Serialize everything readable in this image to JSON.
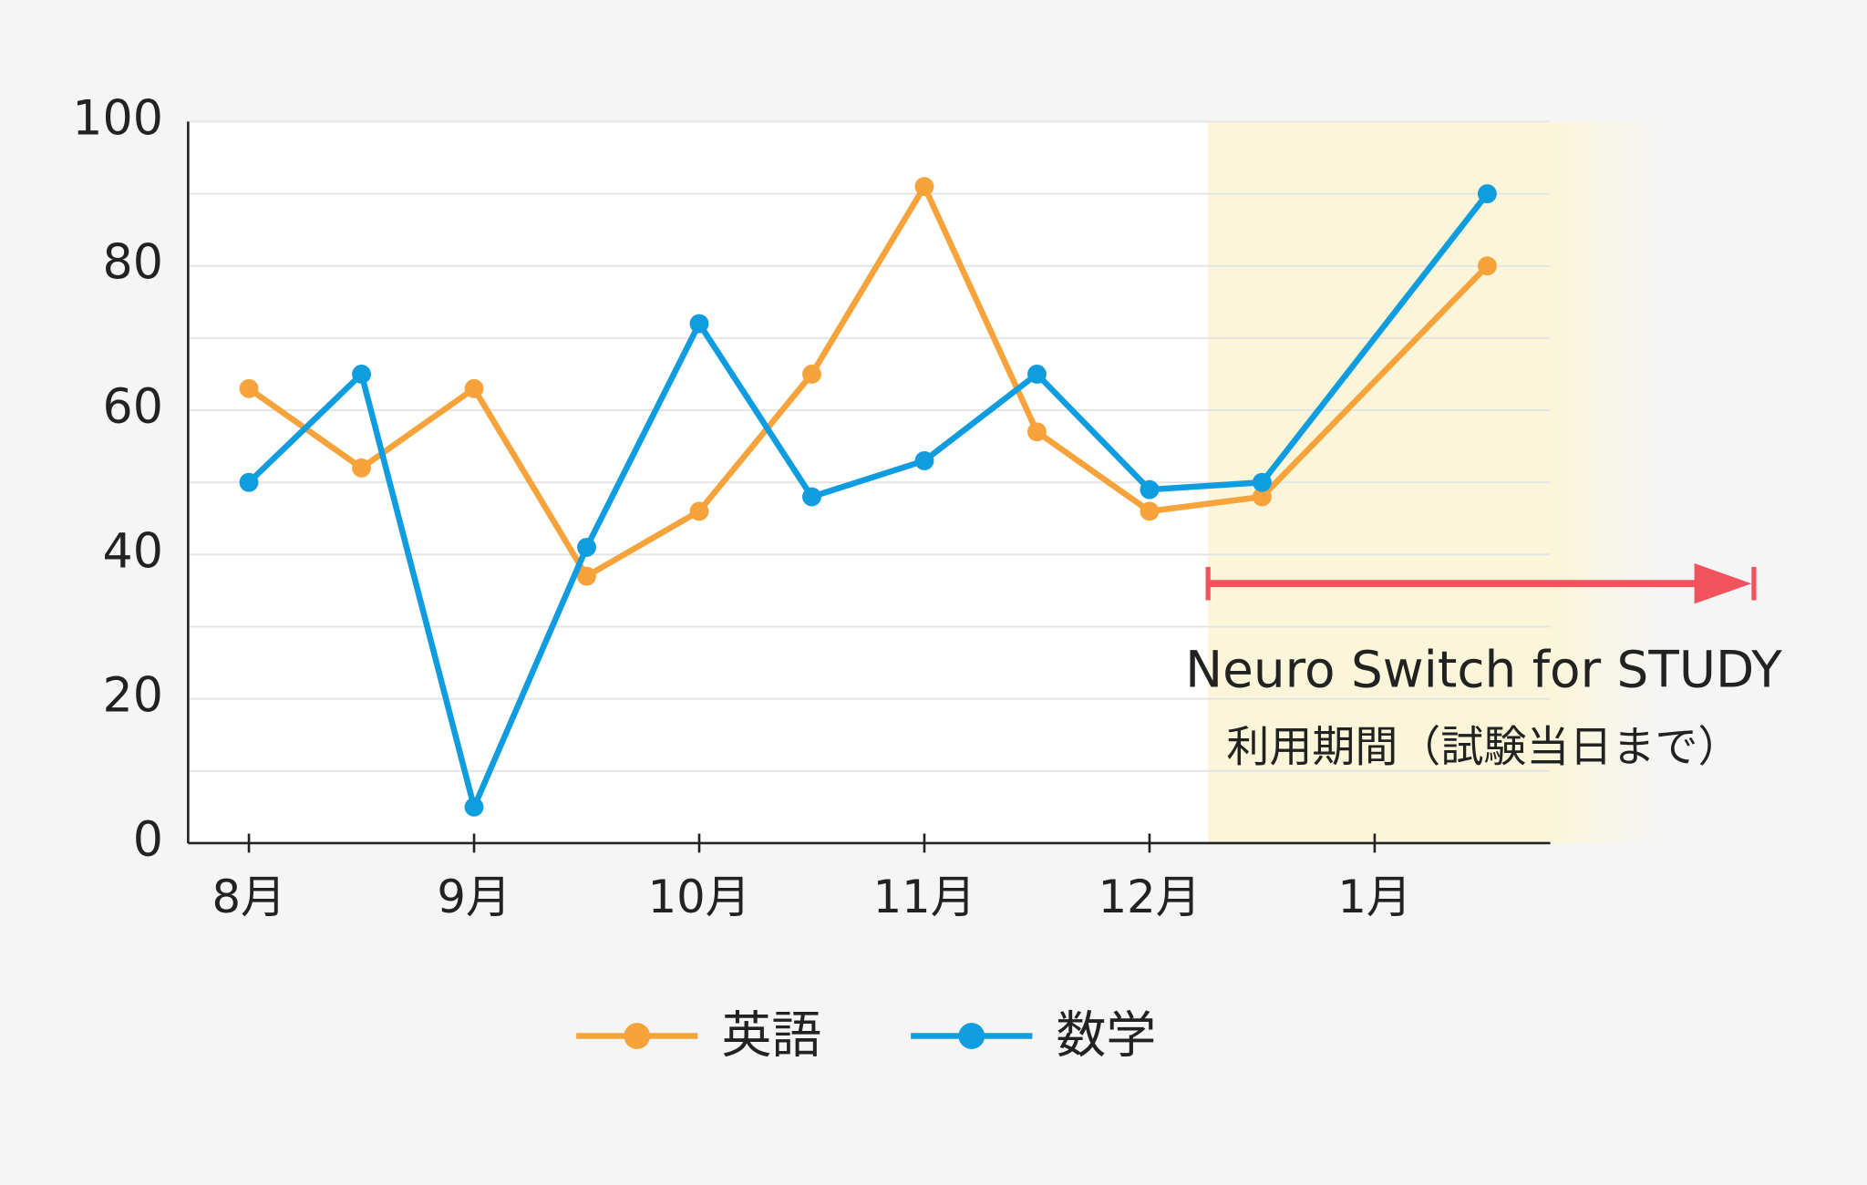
{
  "chart_data": {
    "type": "line",
    "x": [
      8,
      8.5,
      9,
      9.5,
      10,
      10.5,
      11,
      11.5,
      12,
      12.5,
      13.5
    ],
    "xlim": [
      7.73,
      13.78
    ],
    "xticks": [
      {
        "value": 8,
        "label": "8月"
      },
      {
        "value": 9,
        "label": "9月"
      },
      {
        "value": 10,
        "label": "10月"
      },
      {
        "value": 11,
        "label": "11月"
      },
      {
        "value": 12,
        "label": "12月"
      },
      {
        "value": 13,
        "label": "1月"
      }
    ],
    "ylim": [
      0,
      100
    ],
    "yticks": [
      0,
      20,
      40,
      60,
      80,
      100
    ],
    "ygrid": [
      10,
      20,
      30,
      40,
      50,
      60,
      70,
      80,
      90,
      100
    ],
    "grid": true,
    "series": [
      {
        "name": "英語",
        "color": "#f5a33a",
        "values": [
          63,
          52,
          63,
          37,
          46,
          65,
          91,
          57,
          46,
          48,
          80
        ]
      },
      {
        "name": "数学",
        "color": "#0f9ddf",
        "values": [
          50,
          65,
          5,
          41,
          72,
          48,
          53,
          65,
          49,
          50,
          90
        ]
      }
    ],
    "highlight": {
      "from": 12.26,
      "to": 13.78,
      "color": "#fbf6d9"
    },
    "annotation": {
      "lines": [
        "Neuro Switch for STUDY",
        "利用期間（試験当日まで）"
      ],
      "color": "#f0525e"
    },
    "legend": "bottom"
  }
}
